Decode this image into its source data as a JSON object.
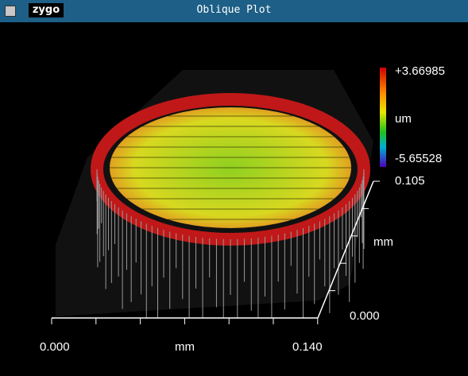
{
  "window": {
    "logo": "zygo",
    "title": "Oblique Plot"
  },
  "color_bar": {
    "max_label": "+3.66985",
    "unit": "um",
    "min_label": "-5.65528"
  },
  "y_axis": {
    "max_label": "0.105",
    "unit": "mm",
    "min_label": "0.000"
  },
  "x_axis": {
    "min_label": "0.000",
    "unit": "mm",
    "max_label": "0.140"
  }
}
